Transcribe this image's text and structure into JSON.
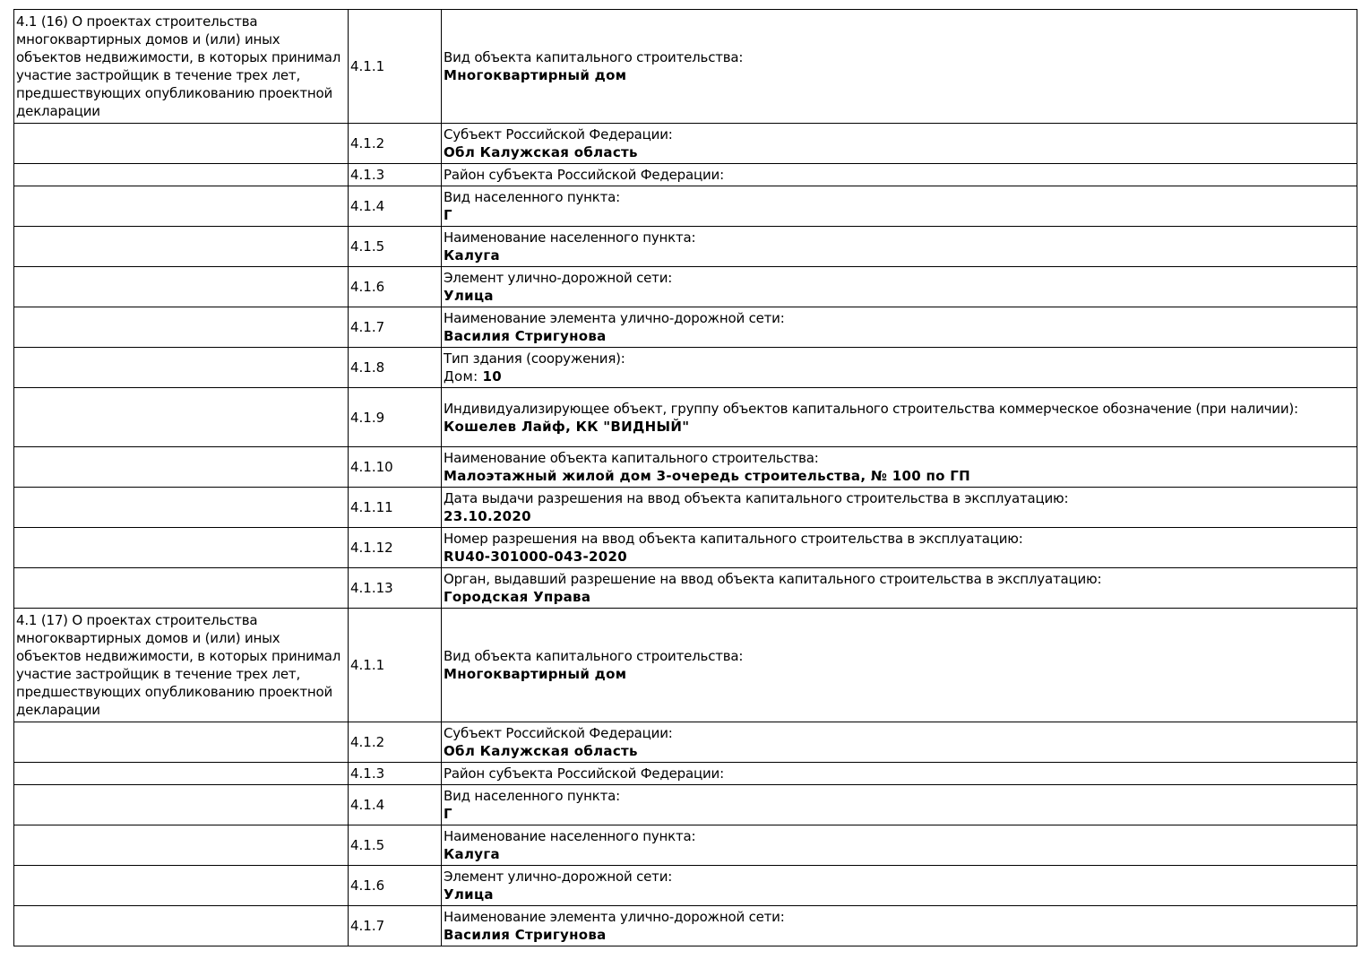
{
  "sections": [
    {
      "title": "4.1 (16) О проектах строительства многоквартирных домов и (или) иных объектов недвижимости, в которых принимал участие застройщик в течение трех лет, предшествующих опубликованию проектной декларации",
      "rows": [
        {
          "code": "4.1.1",
          "label": "Вид объекта капитального строительства:",
          "value": "Многоквартирный дом"
        },
        {
          "code": "4.1.2",
          "label": "Субъект Российской Федерации:",
          "value": "Обл Калужская область"
        },
        {
          "code": "4.1.3",
          "label": "Район субъекта Российской Федерации:",
          "value": ""
        },
        {
          "code": "4.1.4",
          "label": "Вид населенного пункта:",
          "value": "Г"
        },
        {
          "code": "4.1.5",
          "label": "Наименование населенного пункта:",
          "value": "Калуга"
        },
        {
          "code": "4.1.6",
          "label": "Элемент улично-дорожной сети:",
          "value": "Улица"
        },
        {
          "code": "4.1.7",
          "label": "Наименование элемента улично-дорожной сети:",
          "value": "Василия Стригунова"
        },
        {
          "code": "4.1.8",
          "label": "Тип здания (сооружения):",
          "value_prefix": "Дом: ",
          "value": "10"
        },
        {
          "code": "4.1.9",
          "label": "Индивидуализирующее объект, группу объектов капитального строительства коммерческое обозначение (при наличии):",
          "value": "Кошелев Лайф, КК \"ВИДНЫЙ\""
        },
        {
          "code": "4.1.10",
          "label": "Наименование объекта капитального строительства:",
          "value": "Малоэтажный жилой дом 3-очередь строительства, № 100 по ГП"
        },
        {
          "code": "4.1.11",
          "label": "Дата выдачи разрешения на ввод объекта капитального строительства в эксплуатацию:",
          "value": "23.10.2020"
        },
        {
          "code": "4.1.12",
          "label": "Номер разрешения на ввод объекта капитального строительства в эксплуатацию:",
          "value": "RU40-301000-043-2020"
        },
        {
          "code": "4.1.13",
          "label": "Орган, выдавший разрешение на ввод объекта капитального строительства в эксплуатацию:",
          "value": "Городская Управа"
        }
      ]
    },
    {
      "title": "4.1 (17) О проектах строительства многоквартирных домов и (или) иных объектов недвижимости, в которых принимал участие застройщик в течение трех лет, предшествующих опубликованию проектной декларации",
      "rows": [
        {
          "code": "4.1.1",
          "label": "Вид объекта капитального строительства:",
          "value": "Многоквартирный дом"
        },
        {
          "code": "4.1.2",
          "label": "Субъект Российской Федерации:",
          "value": "Обл Калужская область"
        },
        {
          "code": "4.1.3",
          "label": "Район субъекта Российской Федерации:",
          "value": ""
        },
        {
          "code": "4.1.4",
          "label": "Вид населенного пункта:",
          "value": "Г"
        },
        {
          "code": "4.1.5",
          "label": "Наименование населенного пункта:",
          "value": "Калуга"
        },
        {
          "code": "4.1.6",
          "label": "Элемент улично-дорожной сети:",
          "value": "Улица"
        },
        {
          "code": "4.1.7",
          "label": "Наименование элемента улично-дорожной сети:",
          "value": "Василия Стригунова"
        }
      ]
    }
  ]
}
